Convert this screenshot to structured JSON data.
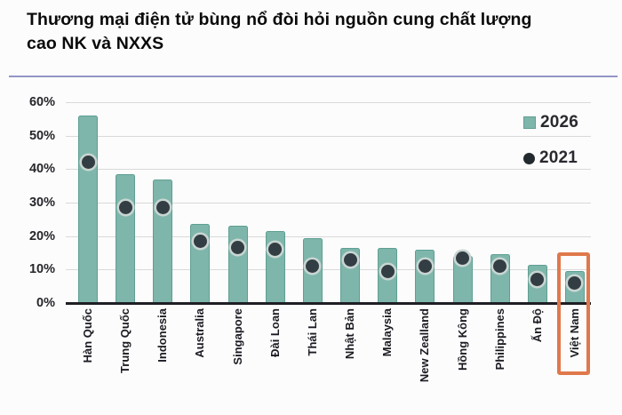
{
  "header": {
    "title_line1": "Thương mại điện tử bùng nổ đòi hỏi nguồn cung chất lượng",
    "title_line2": "cao NK và NXXS"
  },
  "colors": {
    "bar": "#7eb6ab",
    "bar_border": "#5f9f93",
    "dot": "#333e44",
    "dot_ring": "#c9d5d2",
    "grid": "#d9d9d9",
    "axis": "#1f1f24",
    "separator": "#9496c5",
    "highlight": "#e0784b"
  },
  "chart_data": {
    "type": "bar",
    "title": "Thương mại điện tử bùng nổ đòi hỏi nguồn cung chất lượng cao NK và NXXS",
    "categories": [
      "Hàn Quốc",
      "Trung Quốc",
      "Indonesia",
      "Australia",
      "Singapore",
      "Đài Loan",
      "Thái Lan",
      "Nhật Bản",
      "Malaysia",
      "New Zealland",
      "Hồng Kông",
      "Philippines",
      "Ấn Độ",
      "Việt Nam"
    ],
    "series": [
      {
        "name": "2026",
        "marker": "bar",
        "values": [
          56,
          38.5,
          37,
          23.5,
          23,
          21.5,
          19.5,
          16.5,
          16.5,
          16,
          14,
          14.5,
          11.5,
          9.5
        ]
      },
      {
        "name": "2021",
        "marker": "dot",
        "values": [
          42,
          28.5,
          28.5,
          18.5,
          16.5,
          16,
          11,
          13,
          9.5,
          11,
          13.5,
          11,
          7,
          6
        ]
      }
    ],
    "ytick_labels": [
      "0%",
      "10%",
      "20%",
      "30%",
      "40%",
      "50%",
      "60%"
    ],
    "ylim": [
      0,
      60
    ],
    "grid": true,
    "legend_position": "top-right",
    "highlighted_category": "Việt Nam"
  }
}
